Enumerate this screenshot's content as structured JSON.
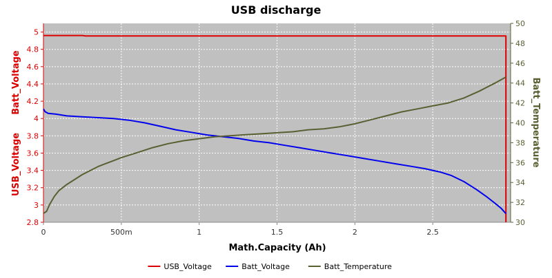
{
  "chart_data": {
    "type": "line",
    "title": "USB discharge",
    "xlabel": "Math.Capacity (Ah)",
    "ylabel_left_top": "Batt_Voltage",
    "ylabel_left_bottom": "USB_Voltage",
    "ylabel_right": "Batt_Temperature",
    "xlim": [
      0,
      3.0
    ],
    "ylim_left": [
      2.8,
      5.1
    ],
    "ylim_right": [
      30,
      50
    ],
    "x_ticks": [
      {
        "value": 0,
        "label": "0"
      },
      {
        "value": 0.5,
        "label": "500m"
      },
      {
        "value": 1.0,
        "label": "1"
      },
      {
        "value": 1.5,
        "label": "1.5"
      },
      {
        "value": 2.0,
        "label": "2"
      },
      {
        "value": 2.5,
        "label": "2.5"
      }
    ],
    "y_ticks_left": [
      {
        "value": 2.8,
        "label": "2.8"
      },
      {
        "value": 3.0,
        "label": "3"
      },
      {
        "value": 3.2,
        "label": "3.2"
      },
      {
        "value": 3.4,
        "label": "3.4"
      },
      {
        "value": 3.6,
        "label": "3.6"
      },
      {
        "value": 3.8,
        "label": "3.8"
      },
      {
        "value": 4.0,
        "label": "4"
      },
      {
        "value": 4.2,
        "label": "4.2"
      },
      {
        "value": 4.4,
        "label": "4.4"
      },
      {
        "value": 4.6,
        "label": "4.6"
      },
      {
        "value": 4.8,
        "label": "4.8"
      },
      {
        "value": 5.0,
        "label": "5"
      }
    ],
    "y_ticks_right": [
      {
        "value": 30,
        "label": "30"
      },
      {
        "value": 32,
        "label": "32"
      },
      {
        "value": 34,
        "label": "34"
      },
      {
        "value": 36,
        "label": "36"
      },
      {
        "value": 38,
        "label": "38"
      },
      {
        "value": 40,
        "label": "40"
      },
      {
        "value": 42,
        "label": "42"
      },
      {
        "value": 44,
        "label": "44"
      },
      {
        "value": 46,
        "label": "46"
      },
      {
        "value": 48,
        "label": "48"
      },
      {
        "value": 50,
        "label": "50"
      }
    ],
    "grid": true,
    "legend_position": "bottom",
    "series": [
      {
        "name": "USB_Voltage",
        "color": "#dd0000",
        "axis": "left",
        "x": [
          0,
          0.25,
          0.27,
          0.5,
          1.0,
          1.5,
          2.0,
          2.5,
          2.97,
          2.97
        ],
        "y": [
          4.96,
          4.96,
          4.955,
          4.955,
          4.955,
          4.955,
          4.955,
          4.955,
          4.955,
          2.8
        ]
      },
      {
        "name": "Batt_Voltage",
        "color": "#0000ee",
        "axis": "left",
        "x": [
          0,
          0.01,
          0.03,
          0.08,
          0.15,
          0.25,
          0.35,
          0.45,
          0.55,
          0.65,
          0.75,
          0.85,
          0.95,
          1.05,
          1.15,
          1.25,
          1.35,
          1.45,
          1.55,
          1.65,
          1.75,
          1.85,
          1.95,
          2.05,
          2.15,
          2.25,
          2.35,
          2.45,
          2.55,
          2.62,
          2.7,
          2.78,
          2.85,
          2.9,
          2.94,
          2.97
        ],
        "y": [
          4.11,
          4.08,
          4.06,
          4.05,
          4.03,
          4.02,
          4.01,
          4.0,
          3.98,
          3.95,
          3.91,
          3.87,
          3.84,
          3.81,
          3.79,
          3.77,
          3.74,
          3.72,
          3.69,
          3.66,
          3.63,
          3.6,
          3.57,
          3.54,
          3.51,
          3.48,
          3.45,
          3.42,
          3.38,
          3.34,
          3.27,
          3.18,
          3.09,
          3.02,
          2.96,
          2.9
        ]
      },
      {
        "name": "Batt_Temperature",
        "color": "#5a5f32",
        "axis": "right",
        "x": [
          0,
          0.02,
          0.04,
          0.07,
          0.1,
          0.15,
          0.2,
          0.25,
          0.3,
          0.35,
          0.4,
          0.45,
          0.5,
          0.6,
          0.7,
          0.8,
          0.9,
          1.0,
          1.1,
          1.2,
          1.3,
          1.4,
          1.5,
          1.6,
          1.7,
          1.8,
          1.9,
          2.0,
          2.1,
          2.2,
          2.3,
          2.4,
          2.5,
          2.6,
          2.7,
          2.8,
          2.9,
          2.97
        ],
        "y": [
          30.9,
          31.1,
          31.8,
          32.6,
          33.2,
          33.8,
          34.3,
          34.8,
          35.2,
          35.6,
          35.9,
          36.2,
          36.5,
          37.0,
          37.5,
          37.9,
          38.2,
          38.4,
          38.6,
          38.7,
          38.8,
          38.9,
          39.0,
          39.1,
          39.3,
          39.4,
          39.6,
          39.9,
          40.3,
          40.7,
          41.1,
          41.4,
          41.7,
          42.0,
          42.5,
          43.2,
          44.0,
          44.6
        ]
      }
    ]
  }
}
